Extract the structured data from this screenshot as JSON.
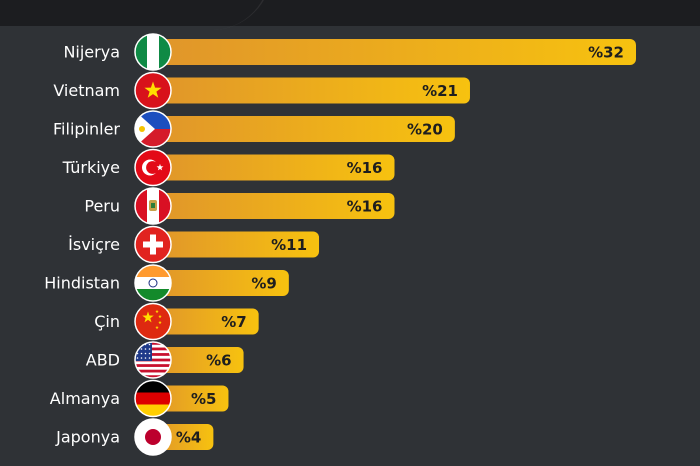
{
  "chart_data": {
    "type": "bar",
    "orientation": "horizontal",
    "categories": [
      "Nijerya",
      "Vietnam",
      "Filipinler",
      "Türkiye",
      "Peru",
      "İsviçre",
      "Hindistan",
      "Çin",
      "ABD",
      "Almanya",
      "Japonya"
    ],
    "values": [
      32,
      21,
      20,
      16,
      16,
      11,
      9,
      7,
      6,
      5,
      4
    ],
    "value_labels": [
      "%32",
      "%21",
      "%20",
      "%16",
      "%16",
      "%11",
      "%9",
      "%7",
      "%6",
      "%5",
      "%4"
    ],
    "flag_icons": [
      "nigeria-flag-icon",
      "vietnam-flag-icon",
      "philippines-flag-icon",
      "turkey-flag-icon",
      "peru-flag-icon",
      "switzerland-flag-icon",
      "india-flag-icon",
      "china-flag-icon",
      "usa-flag-icon",
      "germany-flag-icon",
      "japan-flag-icon"
    ],
    "title": "",
    "xlabel": "",
    "ylabel": "",
    "xlim": [
      0,
      32
    ],
    "grid": false,
    "legend": "none",
    "colors": {
      "background": "#2f3236",
      "bar_start": "#e0952b",
      "bar_end": "#f7c20f",
      "value_text": "#1e1e1e",
      "label_text": "#ffffff"
    }
  }
}
